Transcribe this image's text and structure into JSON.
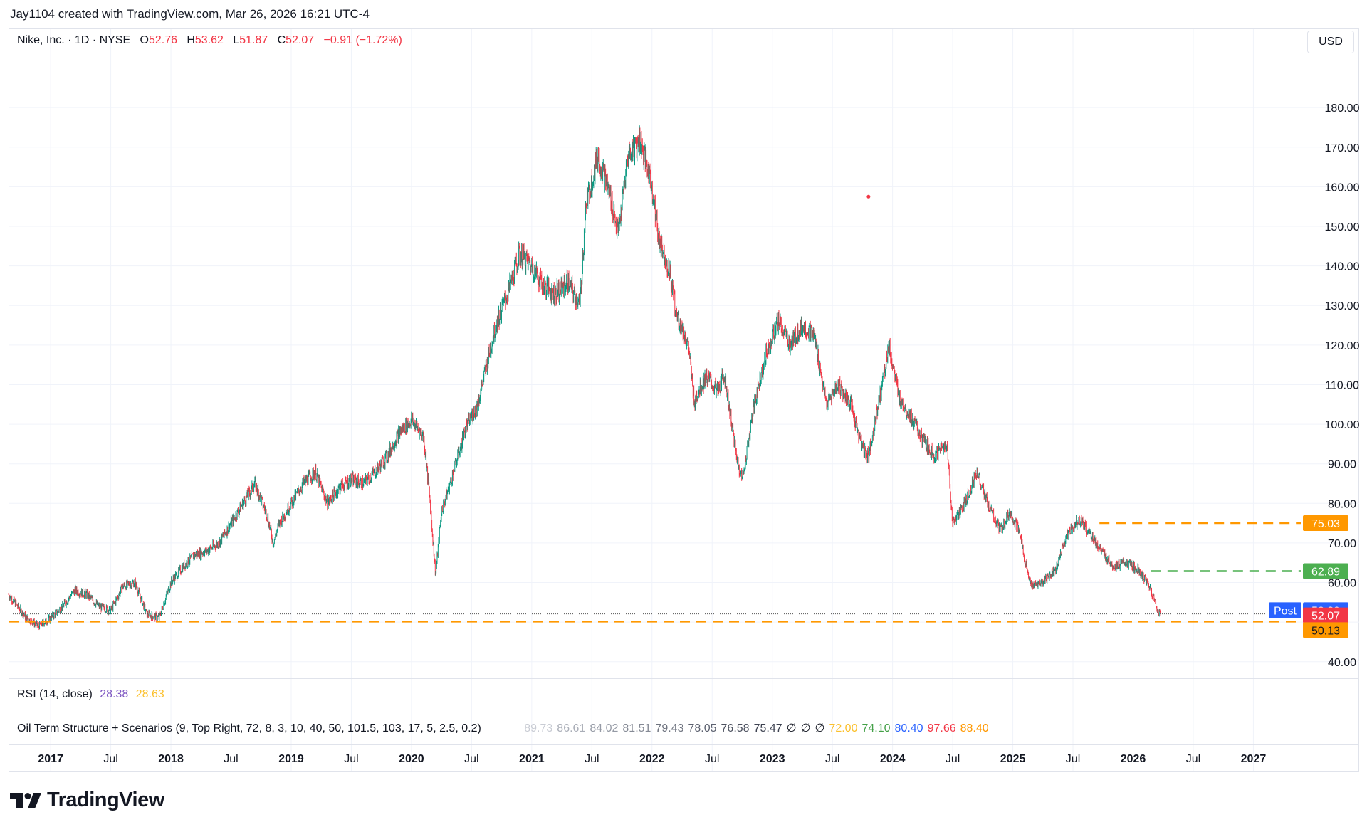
{
  "header": {
    "caption": "Jay1104 created with TradingView.com, Mar 26, 2026 16:21 UTC-4"
  },
  "legend": {
    "symbol": "Nike, Inc. · 1D · NYSE",
    "open_label": "O",
    "open": "52.76",
    "high_label": "H",
    "high": "53.62",
    "low_label": "L",
    "low": "51.87",
    "close_label": "C",
    "close": "52.07",
    "change": "−0.91 (−1.72%)"
  },
  "currency": "USD",
  "rsi": {
    "label": "RSI (14, close)",
    "v1": "28.38",
    "v2": "28.63",
    "c1": "#7e57c2",
    "c2": "#fbc02d"
  },
  "oil": {
    "label": "Oil Term Structure + Scenarios (9, Top Right, 72, 8, 3, 10, 40, 50, 101.5, 103, 17, 5, 2.5, 0.2)",
    "values": [
      {
        "t": "89.73",
        "c": "#c9ccd4"
      },
      {
        "t": "86.61",
        "c": "#a9adb7"
      },
      {
        "t": "84.02",
        "c": "#959aa5"
      },
      {
        "t": "81.51",
        "c": "#858a95"
      },
      {
        "t": "79.43",
        "c": "#6f7480"
      },
      {
        "t": "78.05",
        "c": "#5d6270"
      },
      {
        "t": "76.58",
        "c": "#4d5260"
      },
      {
        "t": "75.47",
        "c": "#3c4150"
      },
      {
        "t": "∅",
        "c": "#131722"
      },
      {
        "t": "∅",
        "c": "#131722"
      },
      {
        "t": "∅",
        "c": "#131722"
      },
      {
        "t": "72.00",
        "c": "#fbc02d"
      },
      {
        "t": "74.10",
        "c": "#43a047"
      },
      {
        "t": "80.40",
        "c": "#2962ff"
      },
      {
        "t": "97.66",
        "c": "#f23645"
      },
      {
        "t": "88.40",
        "c": "#ff9800"
      }
    ]
  },
  "colors": {
    "up": "#089981",
    "down": "#f23645",
    "orange": "#ff9800",
    "green": "#4caf50",
    "blue": "#2962ff",
    "grid": "#f0f3fa"
  },
  "price_labels": {
    "l75": "75.03",
    "l62": "62.89",
    "post_tag": "Post",
    "post": "52.29",
    "last": "52.07",
    "l50": "50.13"
  },
  "footer": {
    "brand": "TradingView"
  },
  "chart_data": {
    "type": "candlestick",
    "symbol": "Nike, Inc.",
    "interval": "1D",
    "exchange": "NYSE",
    "y_ticks": [
      40,
      50,
      60,
      70,
      80,
      90,
      100,
      110,
      120,
      130,
      140,
      150,
      160,
      170,
      180
    ],
    "y_tick_labels": [
      "40.00",
      "",
      "60.00",
      "70.00",
      "80.00",
      "90.00",
      "100.00",
      "110.00",
      "120.00",
      "130.00",
      "140.00",
      "150.00",
      "160.00",
      "170.00",
      "180.00"
    ],
    "ylim": [
      36,
      191
    ],
    "x_ticks": [
      {
        "label": "2017",
        "t": 2017.0,
        "bold": true
      },
      {
        "label": "Jul",
        "t": 2017.5,
        "bold": false
      },
      {
        "label": "2018",
        "t": 2018.0,
        "bold": true
      },
      {
        "label": "Jul",
        "t": 2018.5,
        "bold": false
      },
      {
        "label": "2019",
        "t": 2019.0,
        "bold": true
      },
      {
        "label": "Jul",
        "t": 2019.5,
        "bold": false
      },
      {
        "label": "2020",
        "t": 2020.0,
        "bold": true
      },
      {
        "label": "Jul",
        "t": 2020.5,
        "bold": false
      },
      {
        "label": "2021",
        "t": 2021.0,
        "bold": true
      },
      {
        "label": "Jul",
        "t": 2021.5,
        "bold": false
      },
      {
        "label": "2022",
        "t": 2022.0,
        "bold": true
      },
      {
        "label": "Jul",
        "t": 2022.5,
        "bold": false
      },
      {
        "label": "2023",
        "t": 2023.0,
        "bold": true
      },
      {
        "label": "Jul",
        "t": 2023.5,
        "bold": false
      },
      {
        "label": "2024",
        "t": 2024.0,
        "bold": true
      },
      {
        "label": "Jul",
        "t": 2024.5,
        "bold": false
      },
      {
        "label": "2025",
        "t": 2025.0,
        "bold": true
      },
      {
        "label": "Jul",
        "t": 2025.5,
        "bold": false
      },
      {
        "label": "2026",
        "t": 2026.0,
        "bold": true
      },
      {
        "label": "Jul",
        "t": 2026.5,
        "bold": false
      },
      {
        "label": "2027",
        "t": 2027.0,
        "bold": true
      }
    ],
    "xlim": [
      2016.65,
      2027.4
    ],
    "price_path": [
      [
        2016.65,
        57
      ],
      [
        2016.8,
        51
      ],
      [
        2016.9,
        49
      ],
      [
        2017.0,
        51
      ],
      [
        2017.1,
        54
      ],
      [
        2017.2,
        58
      ],
      [
        2017.3,
        57
      ],
      [
        2017.4,
        54
      ],
      [
        2017.5,
        53
      ],
      [
        2017.6,
        59
      ],
      [
        2017.7,
        60
      ],
      [
        2017.8,
        52
      ],
      [
        2017.9,
        51
      ],
      [
        2018.0,
        60
      ],
      [
        2018.1,
        64
      ],
      [
        2018.2,
        67
      ],
      [
        2018.3,
        68
      ],
      [
        2018.4,
        70
      ],
      [
        2018.5,
        75
      ],
      [
        2018.6,
        80
      ],
      [
        2018.7,
        85
      ],
      [
        2018.8,
        77
      ],
      [
        2018.85,
        70
      ],
      [
        2018.9,
        75
      ],
      [
        2019.0,
        80
      ],
      [
        2019.1,
        85
      ],
      [
        2019.2,
        88
      ],
      [
        2019.3,
        80
      ],
      [
        2019.4,
        84
      ],
      [
        2019.5,
        86
      ],
      [
        2019.6,
        85
      ],
      [
        2019.7,
        88
      ],
      [
        2019.8,
        92
      ],
      [
        2019.9,
        98
      ],
      [
        2020.0,
        101
      ],
      [
        2020.1,
        97
      ],
      [
        2020.15,
        82
      ],
      [
        2020.2,
        62
      ],
      [
        2020.25,
        78
      ],
      [
        2020.35,
        88
      ],
      [
        2020.45,
        99
      ],
      [
        2020.55,
        105
      ],
      [
        2020.7,
        125
      ],
      [
        2020.8,
        133
      ],
      [
        2020.9,
        143
      ],
      [
        2021.0,
        140
      ],
      [
        2021.1,
        135
      ],
      [
        2021.2,
        133
      ],
      [
        2021.3,
        136
      ],
      [
        2021.4,
        130
      ],
      [
        2021.45,
        155
      ],
      [
        2021.55,
        168
      ],
      [
        2021.65,
        158
      ],
      [
        2021.72,
        148
      ],
      [
        2021.8,
        168
      ],
      [
        2021.9,
        172
      ],
      [
        2022.0,
        160
      ],
      [
        2022.05,
        148
      ],
      [
        2022.15,
        138
      ],
      [
        2022.2,
        128
      ],
      [
        2022.3,
        120
      ],
      [
        2022.35,
        106
      ],
      [
        2022.45,
        112
      ],
      [
        2022.55,
        108
      ],
      [
        2022.6,
        113
      ],
      [
        2022.7,
        92
      ],
      [
        2022.75,
        86
      ],
      [
        2022.85,
        105
      ],
      [
        2022.95,
        118
      ],
      [
        2023.05,
        126
      ],
      [
        2023.15,
        120
      ],
      [
        2023.25,
        125
      ],
      [
        2023.35,
        122
      ],
      [
        2023.45,
        105
      ],
      [
        2023.55,
        110
      ],
      [
        2023.65,
        105
      ],
      [
        2023.75,
        94
      ],
      [
        2023.8,
        92
      ],
      [
        2023.9,
        108
      ],
      [
        2023.97,
        120
      ],
      [
        2024.05,
        107
      ],
      [
        2024.15,
        102
      ],
      [
        2024.25,
        96
      ],
      [
        2024.35,
        92
      ],
      [
        2024.45,
        95
      ],
      [
        2024.5,
        75
      ],
      [
        2024.6,
        80
      ],
      [
        2024.7,
        88
      ],
      [
        2024.8,
        79
      ],
      [
        2024.9,
        73
      ],
      [
        2024.97,
        78
      ],
      [
        2025.05,
        73
      ],
      [
        2025.15,
        59
      ],
      [
        2025.25,
        60
      ],
      [
        2025.35,
        63
      ],
      [
        2025.45,
        72
      ],
      [
        2025.55,
        76
      ],
      [
        2025.65,
        72
      ],
      [
        2025.75,
        67
      ],
      [
        2025.85,
        64
      ],
      [
        2025.95,
        65
      ],
      [
        2026.05,
        63
      ],
      [
        2026.15,
        58
      ],
      [
        2026.2,
        53
      ],
      [
        2026.23,
        52
      ]
    ],
    "price_lines": [
      {
        "value": 75.03,
        "color": "#ff9800",
        "label": "75.03",
        "from": 2025.72
      },
      {
        "value": 62.89,
        "color": "#4caf50",
        "label": "62.89",
        "from": 2026.15
      },
      {
        "value": 50.13,
        "color": "#ff9800",
        "label": "50.13",
        "from": 2016.65
      }
    ],
    "last_price": 52.07,
    "post_price": 52.29
  }
}
